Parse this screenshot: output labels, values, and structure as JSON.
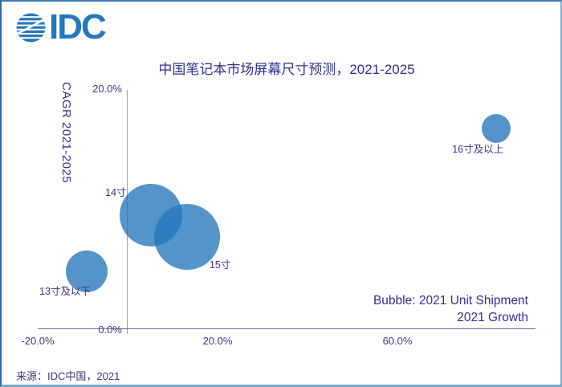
{
  "logo": {
    "text": "IDC",
    "icon": "globe-icon",
    "color": "#2478be"
  },
  "chart_data": {
    "type": "bubble",
    "title": "中国笔记本市场屏幕尺寸预测，2021-2025",
    "x_axis": {
      "implied_label": "2021 Growth",
      "ticks": [
        {
          "value": -20,
          "label": "-20.0%"
        },
        {
          "value": 20,
          "label": "20.0%"
        },
        {
          "value": 60,
          "label": "60.0%"
        }
      ],
      "range": [
        -20,
        90
      ],
      "unit": "percent"
    },
    "y_axis": {
      "label": "CAGR 2021-2025",
      "ticks": [
        {
          "value": 0,
          "label": "0.0%"
        },
        {
          "value": 20,
          "label": "20.0%"
        }
      ],
      "range": [
        0,
        20
      ],
      "unit": "percent"
    },
    "grid": false,
    "legend_position": "bottom-right",
    "legend_note": [
      "Bubble: 2021 Unit Shipment",
      "2021 Growth"
    ],
    "bubble_color": "rgba(34,119,189,0.78)",
    "series": [
      {
        "label": "13寸及以下",
        "x_growth_pct": -9.1,
        "y_cagr_pct": 4.8,
        "radius_px": 26,
        "label_dx": -59,
        "label_dy": 14
      },
      {
        "label": "14寸",
        "x_growth_pct": 5.2,
        "y_cagr_pct": 9.5,
        "radius_px": 39,
        "label_dx": -57,
        "label_dy": -39
      },
      {
        "label": "15寸",
        "x_growth_pct": 13.2,
        "y_cagr_pct": 7.7,
        "radius_px": 41,
        "label_dx": 28,
        "label_dy": 24
      },
      {
        "label": "16寸及以上",
        "x_growth_pct": 82.0,
        "y_cagr_pct": 16.7,
        "radius_px": 18,
        "label_dx": -55,
        "label_dy": 15
      }
    ]
  },
  "source": "来源：IDC中国，2021"
}
